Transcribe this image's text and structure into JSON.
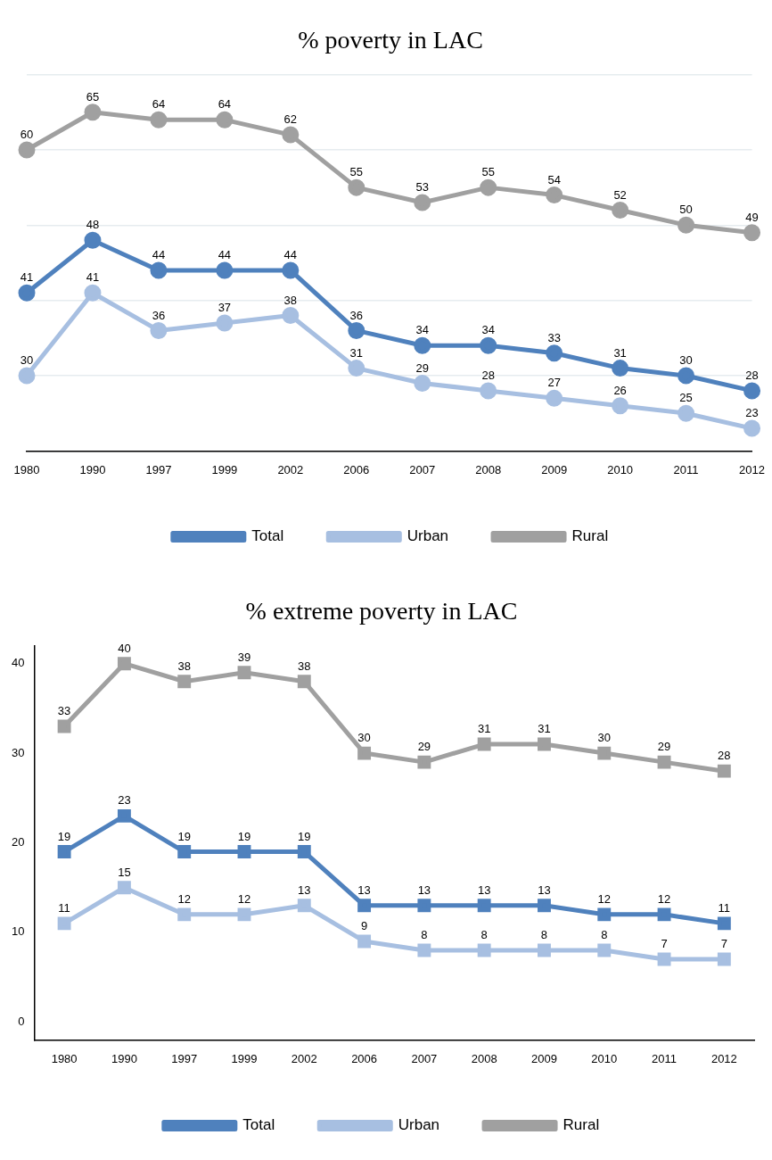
{
  "chart_data": [
    {
      "type": "line",
      "title": "% poverty in LAC",
      "categories": [
        "1980",
        "1990",
        "1997",
        "1999",
        "2002",
        "2006",
        "2007",
        "2008",
        "2009",
        "2010",
        "2011",
        "2012"
      ],
      "marker": "circle",
      "grid": "y",
      "legend": "bottom",
      "data_labels": true,
      "tick_labels": "x",
      "ylim": [
        20,
        70
      ],
      "yticks": [
        {
          "value": 20,
          "label": null
        },
        {
          "value": 30,
          "label": null
        },
        {
          "value": 40,
          "label": null
        },
        {
          "value": 50,
          "label": null
        },
        {
          "value": 60,
          "label": null
        },
        {
          "value": 70,
          "label": null
        }
      ],
      "series": [
        {
          "name": "Total",
          "color": "#4f81bd",
          "values": [
            41,
            48,
            44,
            44,
            44,
            36,
            34,
            34,
            33,
            31,
            30,
            28
          ]
        },
        {
          "name": "Urban",
          "color": "#a7bfe1",
          "values": [
            30,
            41,
            36,
            37,
            38,
            31,
            29,
            28,
            27,
            26,
            25,
            23
          ]
        },
        {
          "name": "Rural",
          "color": "#a0a0a0",
          "values": [
            60,
            65,
            64,
            64,
            62,
            55,
            53,
            55,
            54,
            52,
            50,
            49
          ]
        }
      ]
    },
    {
      "type": "line",
      "title": "% extreme poverty in LAC",
      "categories": [
        "1980",
        "1990",
        "1997",
        "1999",
        "2002",
        "2006",
        "2007",
        "2008",
        "2009",
        "2010",
        "2011",
        "2012"
      ],
      "marker": "square",
      "legend": "bottom",
      "data_labels": true,
      "ylim": [
        -2,
        42
      ],
      "yticks": [
        0,
        10,
        20,
        30,
        40
      ],
      "series": [
        {
          "name": "Total",
          "color": "#4f81bd",
          "values": [
            19,
            23,
            19,
            19,
            19,
            13,
            13,
            13,
            13,
            12,
            12,
            11
          ]
        },
        {
          "name": "Urban",
          "color": "#a7bfe1",
          "values": [
            11,
            15,
            12,
            12,
            13,
            9,
            8,
            8,
            8,
            8,
            7,
            7
          ]
        },
        {
          "name": "Rural",
          "color": "#a0a0a0",
          "values": [
            33,
            40,
            38,
            39,
            38,
            30,
            29,
            31,
            31,
            30,
            29,
            28
          ]
        }
      ]
    }
  ]
}
